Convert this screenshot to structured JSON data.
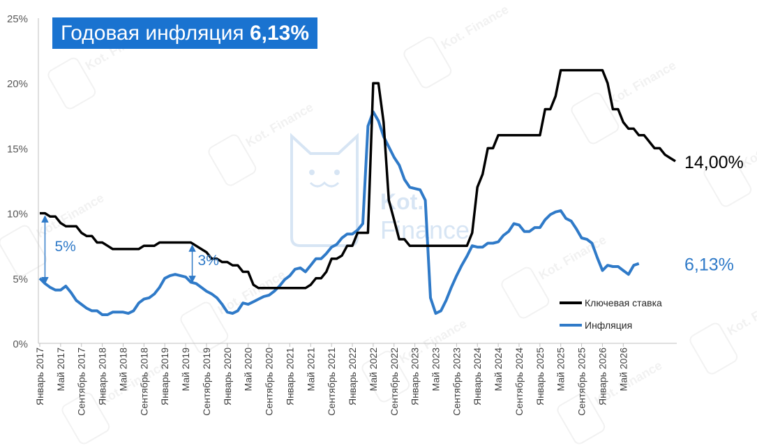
{
  "chart_data": {
    "type": "line",
    "title": "Годовая инфляция",
    "title_value": "6,13%",
    "xlabel": "",
    "ylabel": "",
    "ylim": [
      0,
      25
    ],
    "y_ticks": [
      "0%",
      "5%",
      "10%",
      "15%",
      "20%",
      "25%"
    ],
    "x_tick_labels": [
      "Январь 2017",
      "Май 2017",
      "Сентябрь 2017",
      "Январь 2018",
      "Май 2018",
      "Сентябрь 2018",
      "Январь 2019",
      "Май 2019",
      "Сентябрь 2019",
      "Январь 2020",
      "Май 2020",
      "Сентябрь 2020",
      "Январь 2021",
      "Май 2021",
      "Сентябрь 2021",
      "Январь 2022",
      "Май 2022",
      "Сентябрь 2022",
      "Январь 2023",
      "Май 2023",
      "Сентябрь 2023",
      "Январь 2024",
      "Май 2024",
      "Сентябрь 2024",
      "Январь 2025",
      "Май 2025",
      "Сентябрь 2025",
      "Январь 2026",
      "Май 2026"
    ],
    "grid": false,
    "legend_position": "bottom-right",
    "series": [
      {
        "name": "Ключевая ставка",
        "color": "#000000",
        "end_label": "14,00%",
        "values": [
          10.0,
          10.0,
          9.75,
          9.75,
          9.25,
          9.0,
          9.0,
          9.0,
          8.5,
          8.25,
          8.25,
          7.75,
          7.75,
          7.5,
          7.25,
          7.25,
          7.25,
          7.25,
          7.25,
          7.25,
          7.5,
          7.5,
          7.5,
          7.75,
          7.75,
          7.75,
          7.75,
          7.75,
          7.75,
          7.75,
          7.5,
          7.25,
          7.0,
          6.5,
          6.5,
          6.25,
          6.25,
          6.0,
          6.0,
          5.5,
          5.5,
          4.5,
          4.25,
          4.25,
          4.25,
          4.25,
          4.25,
          4.25,
          4.25,
          4.25,
          4.25,
          4.25,
          4.5,
          5.0,
          5.0,
          5.5,
          6.5,
          6.5,
          6.75,
          7.5,
          7.5,
          8.5,
          8.5,
          8.5,
          20.0,
          20.0,
          17.0,
          11.0,
          9.5,
          8.0,
          8.0,
          7.5,
          7.5,
          7.5,
          7.5,
          7.5,
          7.5,
          7.5,
          7.5,
          7.5,
          7.5,
          7.5,
          7.5,
          8.5,
          12.0,
          13.0,
          15.0,
          15.0,
          16.0,
          16.0,
          16.0,
          16.0,
          16.0,
          16.0,
          16.0,
          16.0,
          16.0,
          18.0,
          18.0,
          19.0,
          21.0,
          21.0,
          21.0,
          21.0,
          21.0,
          21.0,
          21.0,
          21.0,
          21.0,
          20.0,
          18.0,
          18.0,
          17.0,
          16.5,
          16.5,
          16.0,
          16.0,
          15.5,
          15.0,
          15.0,
          14.5,
          14.25,
          14.0
        ]
      },
      {
        "name": "Инфляция",
        "color": "#2f7ac8",
        "end_label": "6,13%",
        "values": [
          5.0,
          4.6,
          4.3,
          4.1,
          4.1,
          4.4,
          3.9,
          3.3,
          3.0,
          2.7,
          2.5,
          2.5,
          2.2,
          2.2,
          2.4,
          2.4,
          2.4,
          2.3,
          2.5,
          3.1,
          3.4,
          3.5,
          3.8,
          4.3,
          5.0,
          5.2,
          5.3,
          5.2,
          5.1,
          4.7,
          4.6,
          4.3,
          4.0,
          3.8,
          3.5,
          3.0,
          2.4,
          2.3,
          2.5,
          3.1,
          3.0,
          3.2,
          3.4,
          3.6,
          3.7,
          4.0,
          4.4,
          4.9,
          5.2,
          5.7,
          5.8,
          5.5,
          6.0,
          6.5,
          6.5,
          6.9,
          7.4,
          7.6,
          8.1,
          8.4,
          8.4,
          8.7,
          9.2,
          16.7,
          17.8,
          17.1,
          15.9,
          15.1,
          14.3,
          13.7,
          12.6,
          12.0,
          11.9,
          11.8,
          11.0,
          3.5,
          2.3,
          2.5,
          3.3,
          4.3,
          5.2,
          6.0,
          6.7,
          7.5,
          7.4,
          7.4,
          7.7,
          7.7,
          7.8,
          8.3,
          8.6,
          9.2,
          9.1,
          8.6,
          8.6,
          8.9,
          8.9,
          9.5,
          9.9,
          10.1,
          10.2,
          9.6,
          9.4,
          8.8,
          8.1,
          8.0,
          7.7,
          6.6,
          5.6,
          6.0,
          5.9,
          5.9,
          5.6,
          5.3,
          6.0,
          6.13
        ]
      }
    ],
    "annotations": [
      {
        "text": "5%",
        "color": "#2f7ac8"
      },
      {
        "text": "3%",
        "color": "#2f7ac8"
      }
    ],
    "watermark": "Kot. Finance"
  }
}
